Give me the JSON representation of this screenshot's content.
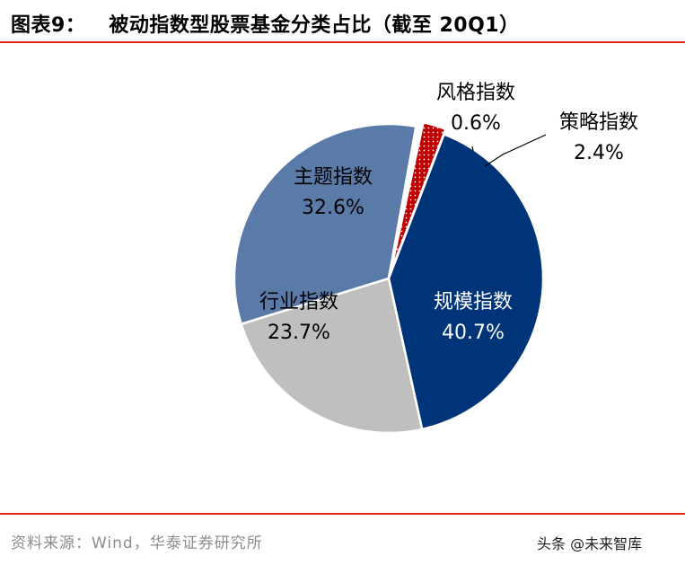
{
  "header": {
    "figure_label": "图表9：",
    "title": "被动指数型股票基金分类占比（截至 20Q1）"
  },
  "chart_data": {
    "type": "pie",
    "title": "被动指数型股票基金分类占比（截至 20Q1）",
    "unit": "%",
    "slices": [
      {
        "name": "规模指数",
        "value": 40.7,
        "label": "40.7%",
        "color": "#003478"
      },
      {
        "name": "行业指数",
        "value": 23.7,
        "label": "23.7%",
        "color": "#bfbfbf"
      },
      {
        "name": "主题指数",
        "value": 32.6,
        "label": "32.6%",
        "color": "#5a7ba8"
      },
      {
        "name": "风格指数",
        "value": 0.6,
        "label": "0.6%",
        "color": "#ffffff"
      },
      {
        "name": "策略指数",
        "value": 2.4,
        "label": "2.4%",
        "color": "#c00000",
        "pattern": "dotted"
      }
    ]
  },
  "footer": {
    "source": "资料来源：Wind，华泰证券研究所",
    "watermark": "头条 @未来智库"
  }
}
